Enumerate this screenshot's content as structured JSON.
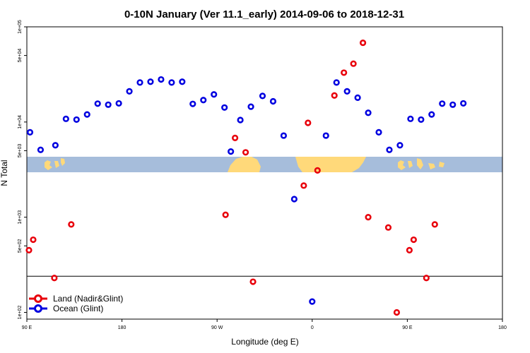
{
  "chart_data": {
    "type": "scatter",
    "title": "0-10N January (Ver 11.1_early)   2014-09-06 to 2018-12-31",
    "xlabel": "Longitude (deg E)",
    "ylabel": "N Total",
    "y_scale": "log",
    "ylim": [
      85,
      100000
    ],
    "x_ticks": [
      "90 E",
      "180",
      "90 W",
      "0",
      "90 E",
      "180"
    ],
    "y_ticks": [
      {
        "value": 100,
        "label": "1e+02"
      },
      {
        "value": 500,
        "label": "5e+02"
      },
      {
        "value": 1000,
        "label": "1e+03"
      },
      {
        "value": 5000,
        "label": "5e+03"
      },
      {
        "value": 10000,
        "label": "1e+04"
      },
      {
        "value": 50000,
        "label": "5e+04"
      },
      {
        "value": 100000,
        "label": "1e+05"
      }
    ],
    "reference_line_y": 240,
    "series": [
      {
        "name": "Land (Nadir&Glint)",
        "color": "#e8000b",
        "points": [
          {
            "lon": 92,
            "n": 450
          },
          {
            "lon": 96,
            "n": 580
          },
          {
            "lon": 116,
            "n": 230
          },
          {
            "lon": 132,
            "n": 840
          },
          {
            "lon": 278,
            "n": 1060
          },
          {
            "lon": 287,
            "n": 6800
          },
          {
            "lon": 297,
            "n": 4800
          },
          {
            "lon": 304,
            "n": 210
          },
          {
            "lon": 352,
            "n": 2150
          },
          {
            "lon": 356,
            "n": 9800
          },
          {
            "lon": 365,
            "n": 3100
          },
          {
            "lon": 381,
            "n": 19000
          },
          {
            "lon": 390,
            "n": 33000
          },
          {
            "lon": 399,
            "n": 41000
          },
          {
            "lon": 408,
            "n": 68000
          },
          {
            "lon": 413,
            "n": 1000
          },
          {
            "lon": 432,
            "n": 780
          },
          {
            "lon": 440,
            "n": 100
          },
          {
            "lon": 452,
            "n": 450
          },
          {
            "lon": 456,
            "n": 580
          },
          {
            "lon": 468,
            "n": 230
          },
          {
            "lon": 476,
            "n": 840
          }
        ]
      },
      {
        "name": "Ocean (Glint)",
        "color": "#0000e0",
        "points": [
          {
            "lon": 93,
            "n": 7800
          },
          {
            "lon": 103,
            "n": 5100
          },
          {
            "lon": 117,
            "n": 5700
          },
          {
            "lon": 127,
            "n": 10800
          },
          {
            "lon": 137,
            "n": 10600
          },
          {
            "lon": 147,
            "n": 12000
          },
          {
            "lon": 157,
            "n": 15600
          },
          {
            "lon": 167,
            "n": 15200
          },
          {
            "lon": 177,
            "n": 15700
          },
          {
            "lon": 187,
            "n": 21000
          },
          {
            "lon": 197,
            "n": 26000
          },
          {
            "lon": 207,
            "n": 26500
          },
          {
            "lon": 217,
            "n": 28000
          },
          {
            "lon": 227,
            "n": 26000
          },
          {
            "lon": 237,
            "n": 26500
          },
          {
            "lon": 247,
            "n": 15500
          },
          {
            "lon": 257,
            "n": 17000
          },
          {
            "lon": 267,
            "n": 19500
          },
          {
            "lon": 277,
            "n": 14200
          },
          {
            "lon": 283,
            "n": 4900
          },
          {
            "lon": 292,
            "n": 10500
          },
          {
            "lon": 302,
            "n": 14500
          },
          {
            "lon": 313,
            "n": 18800
          },
          {
            "lon": 323,
            "n": 16500
          },
          {
            "lon": 333,
            "n": 7200
          },
          {
            "lon": 343,
            "n": 1550
          },
          {
            "lon": 360,
            "n": 130
          },
          {
            "lon": 373,
            "n": 7200
          },
          {
            "lon": 383,
            "n": 26000
          },
          {
            "lon": 393,
            "n": 21000
          },
          {
            "lon": 403,
            "n": 18000
          },
          {
            "lon": 413,
            "n": 12500
          },
          {
            "lon": 423,
            "n": 7800
          },
          {
            "lon": 433,
            "n": 5100
          },
          {
            "lon": 443,
            "n": 5700
          },
          {
            "lon": 453,
            "n": 10800
          },
          {
            "lon": 463,
            "n": 10600
          },
          {
            "lon": 473,
            "n": 12000
          },
          {
            "lon": 483,
            "n": 15600
          },
          {
            "lon": 493,
            "n": 15200
          },
          {
            "lon": 503,
            "n": 15700
          }
        ]
      }
    ]
  },
  "legend": {
    "items": [
      {
        "label": "Land (Nadir&Glint)",
        "color": "#e8000b"
      },
      {
        "label": "Ocean (Glint)",
        "color": "#0000e0"
      }
    ]
  },
  "map_strip": {
    "ocean_color": "#a6bddb",
    "land_color": "#ffd97a"
  }
}
